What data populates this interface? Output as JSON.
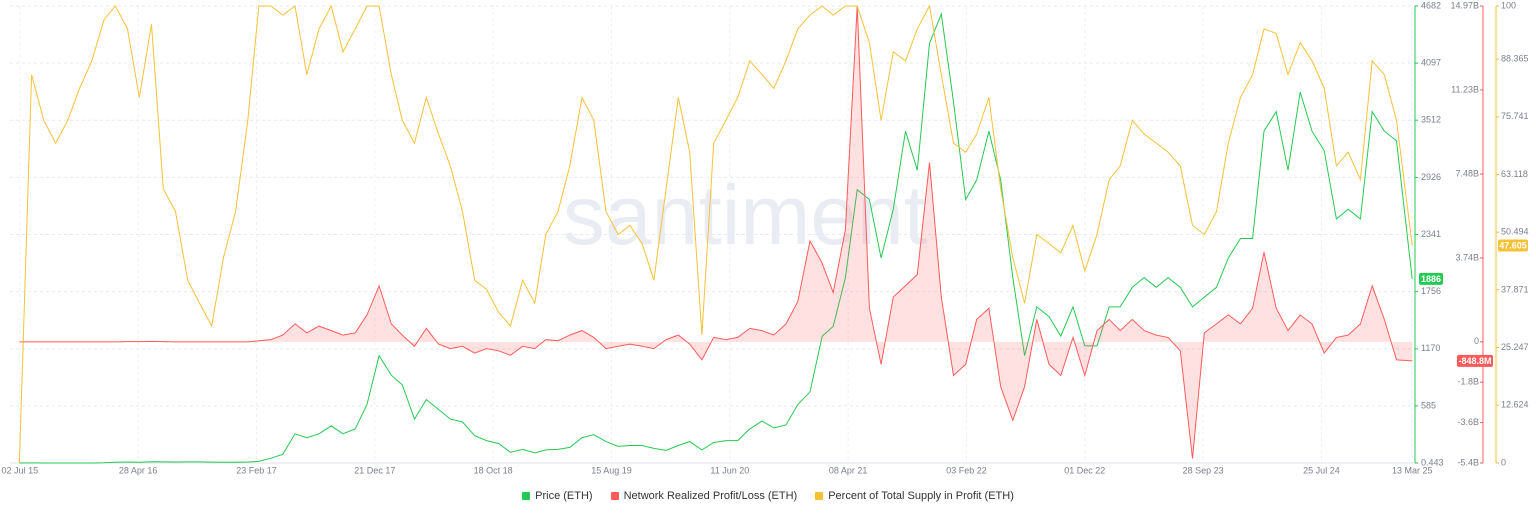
{
  "chart_data": {
    "type": "line",
    "watermark": "santiment",
    "x": [
      "2015-07-01",
      "2015-08-01",
      "2015-09-01",
      "2015-10-01",
      "2015-11-01",
      "2015-12-01",
      "2016-01-01",
      "2016-02-01",
      "2016-03-01",
      "2016-04-01",
      "2016-05-01",
      "2016-06-01",
      "2016-07-01",
      "2016-08-01",
      "2016-09-01",
      "2016-10-01",
      "2016-11-01",
      "2016-12-01",
      "2017-01-01",
      "2017-02-01",
      "2017-03-01",
      "2017-04-01",
      "2017-05-01",
      "2017-06-01",
      "2017-07-01",
      "2017-08-01",
      "2017-09-01",
      "2017-10-01",
      "2017-11-01",
      "2017-12-01",
      "2018-01-01",
      "2018-02-01",
      "2018-03-01",
      "2018-04-01",
      "2018-05-01",
      "2018-06-01",
      "2018-07-01",
      "2018-08-01",
      "2018-09-01",
      "2018-10-01",
      "2018-11-01",
      "2018-12-01",
      "2019-01-01",
      "2019-02-01",
      "2019-03-01",
      "2019-04-01",
      "2019-05-01",
      "2019-06-01",
      "2019-07-01",
      "2019-08-01",
      "2019-09-01",
      "2019-10-01",
      "2019-11-01",
      "2019-12-01",
      "2020-01-01",
      "2020-02-01",
      "2020-03-01",
      "2020-04-01",
      "2020-05-01",
      "2020-06-01",
      "2020-07-01",
      "2020-08-01",
      "2020-09-01",
      "2020-10-01",
      "2020-11-01",
      "2020-12-01",
      "2021-01-01",
      "2021-02-01",
      "2021-03-01",
      "2021-04-01",
      "2021-05-01",
      "2021-06-01",
      "2021-07-01",
      "2021-08-01",
      "2021-09-01",
      "2021-10-01",
      "2021-11-01",
      "2021-12-01",
      "2022-01-01",
      "2022-02-01",
      "2022-03-01",
      "2022-04-01",
      "2022-05-01",
      "2022-06-01",
      "2022-07-01",
      "2022-08-01",
      "2022-09-01",
      "2022-10-01",
      "2022-11-01",
      "2022-12-01",
      "2023-01-01",
      "2023-02-01",
      "2023-03-01",
      "2023-04-01",
      "2023-05-01",
      "2023-06-01",
      "2023-07-01",
      "2023-08-01",
      "2023-09-01",
      "2023-10-01",
      "2023-11-01",
      "2023-12-01",
      "2024-01-01",
      "2024-02-01",
      "2024-03-01",
      "2024-04-01",
      "2024-05-01",
      "2024-06-01",
      "2024-07-01",
      "2024-08-01",
      "2024-09-01",
      "2024-10-01",
      "2024-11-01",
      "2024-12-01",
      "2025-01-01",
      "2025-02-01",
      "2025-03-13"
    ],
    "xlim": [
      "2015-06-07",
      "2025-03-20"
    ],
    "xticks": [
      {
        "value": "2015-07-02",
        "label": "02 Jul 15"
      },
      {
        "value": "2016-04-28",
        "label": "28 Apr 16"
      },
      {
        "value": "2017-02-23",
        "label": "23 Feb 17"
      },
      {
        "value": "2017-12-21",
        "label": "21 Dec 17"
      },
      {
        "value": "2018-10-18",
        "label": "18 Oct 18"
      },
      {
        "value": "2019-08-15",
        "label": "15 Aug 19"
      },
      {
        "value": "2020-06-11",
        "label": "11 Jun 20"
      },
      {
        "value": "2021-04-08",
        "label": "08 Apr 21"
      },
      {
        "value": "2022-02-03",
        "label": "03 Feb 22"
      },
      {
        "value": "2022-12-01",
        "label": "01 Dec 22"
      },
      {
        "value": "2023-09-28",
        "label": "28 Sep 23"
      },
      {
        "value": "2024-07-25",
        "label": "25 Jul 24"
      },
      {
        "value": "2025-03-13",
        "label": "13 Mar 25"
      }
    ],
    "ylim": [
      0.443,
      4682
    ],
    "yticks": [
      0.443,
      585,
      1170,
      1756,
      2341,
      2926,
      3512,
      4097,
      4682
    ],
    "y2lim": [
      -5.4,
      14.97
    ],
    "y2ticks": [
      {
        "value": -5.4,
        "label": "-5.4B"
      },
      {
        "value": -3.6,
        "label": "-3.6B"
      },
      {
        "value": -1.8,
        "label": "-1.8B"
      },
      0,
      {
        "value": 3.74,
        "label": "3.74B"
      },
      {
        "value": 7.48,
        "label": "7.48B"
      },
      {
        "value": 11.23,
        "label": "11.23B"
      },
      {
        "value": 14.97,
        "label": "14.97B"
      }
    ],
    "y3lim": [
      0,
      100
    ],
    "y3ticks": [
      0,
      12.624,
      25.247,
      37.871,
      50.494,
      63.118,
      75.741,
      88.365,
      100
    ],
    "grid": true,
    "legend": "bottom",
    "series": [
      {
        "name": "Price (ETH)",
        "color": "#26c953",
        "axis": "y",
        "values": [
          0.443,
          1.2,
          0.9,
          0.6,
          0.9,
          0.9,
          0.95,
          2.3,
          8,
          11,
          9,
          13,
          12,
          11,
          12,
          12,
          10,
          8,
          8,
          11,
          17,
          50,
          90,
          300,
          260,
          300,
          380,
          300,
          350,
          600,
          1100,
          900,
          800,
          450,
          650,
          550,
          450,
          420,
          280,
          230,
          200,
          110,
          140,
          105,
          135,
          140,
          160,
          260,
          290,
          220,
          170,
          180,
          180,
          150,
          130,
          180,
          220,
          135,
          210,
          230,
          230,
          350,
          430,
          360,
          390,
          600,
          730,
          1300,
          1400,
          1900,
          2800,
          2700,
          2100,
          2600,
          3400,
          3000,
          4300,
          4600,
          3700,
          2700,
          2900,
          3400,
          2900,
          1900,
          1100,
          1600,
          1500,
          1300,
          1600,
          1200,
          1200,
          1600,
          1600,
          1800,
          1900,
          1800,
          1900,
          1800,
          1600,
          1700,
          1800,
          2100,
          2300,
          2300,
          3400,
          3600,
          3000,
          3800,
          3400,
          3200,
          2500,
          2600,
          2500,
          3600,
          3400,
          3300,
          1886
        ]
      },
      {
        "name": "Network Realized Profit/Loss (ETH)",
        "color": "#ff5b5b",
        "axis": "y2",
        "values": [
          0,
          0,
          0,
          0,
          0,
          0,
          0,
          0,
          0,
          0.01,
          0.01,
          0.02,
          0.01,
          0,
          0,
          0,
          0,
          0,
          0,
          0,
          0.05,
          0.1,
          0.3,
          0.8,
          0.4,
          0.7,
          0.5,
          0.3,
          0.4,
          1.2,
          2.5,
          0.8,
          0.3,
          -0.2,
          0.6,
          -0.1,
          -0.3,
          -0.2,
          -0.5,
          -0.3,
          -0.4,
          -0.6,
          -0.2,
          -0.3,
          0.1,
          0.05,
          0.3,
          0.5,
          0.2,
          -0.3,
          -0.2,
          -0.1,
          -0.2,
          -0.3,
          0.1,
          0.3,
          -0.1,
          -0.8,
          0.2,
          0.1,
          0.2,
          0.6,
          0.5,
          0.3,
          0.8,
          1.8,
          4.5,
          3.5,
          2.2,
          5.0,
          14.97,
          1.5,
          -1.0,
          2.0,
          2.5,
          3.0,
          8.0,
          2.0,
          -1.5,
          -1.0,
          1.0,
          1.5,
          -2.0,
          -3.5,
          -2.0,
          1.0,
          -1.0,
          -1.5,
          0.2,
          -1.5,
          0.5,
          1.0,
          0.5,
          1.0,
          0.5,
          0.3,
          0.2,
          -0.4,
          -5.2,
          0.4,
          0.8,
          1.2,
          0.8,
          1.5,
          4.0,
          1.5,
          0.5,
          1.2,
          0.8,
          -0.5,
          0.2,
          0.3,
          0.8,
          2.5,
          1.0,
          -0.8,
          -0.8488
        ],
        "value_labels": [
          null,
          null,
          null,
          null,
          null,
          null,
          null,
          null,
          null,
          null,
          null,
          null,
          null,
          null,
          null,
          null,
          null,
          null,
          null,
          null,
          null,
          null,
          null,
          null,
          null,
          null,
          null,
          null,
          null,
          null,
          null,
          null,
          null,
          null,
          null,
          null,
          null,
          null,
          null,
          null,
          null,
          null,
          null,
          null,
          null,
          null,
          null,
          null,
          null,
          null,
          null,
          null,
          null,
          null,
          null,
          null,
          null,
          null,
          null,
          null,
          null,
          null,
          null,
          null,
          null,
          null,
          null,
          null,
          null,
          null,
          null,
          null,
          null,
          null,
          null,
          null,
          null,
          null,
          null,
          null,
          null,
          null,
          null,
          null,
          null,
          null,
          null,
          null,
          null,
          null,
          null,
          null,
          null,
          null,
          null,
          null,
          null,
          null,
          null,
          null,
          null,
          null,
          null,
          null,
          null,
          null,
          null,
          null,
          null,
          null,
          null,
          null,
          null,
          null,
          null,
          null,
          "-848.8M"
        ]
      },
      {
        "name": "Percent of Total Supply in Profit (ETH)",
        "color": "#f7c137",
        "axis": "y3",
        "values": [
          0,
          85,
          75,
          70,
          75,
          82,
          88,
          97,
          100,
          95,
          80,
          96,
          60,
          55,
          40,
          35,
          30,
          45,
          55,
          75,
          100,
          100,
          98,
          100,
          85,
          95,
          100,
          90,
          95,
          100,
          100,
          85,
          75,
          70,
          80,
          72,
          65,
          55,
          40,
          38,
          33,
          30,
          40,
          35,
          50,
          55,
          65,
          80,
          75,
          55,
          50,
          52,
          48,
          40,
          60,
          80,
          68,
          28,
          70,
          75,
          80,
          88,
          85,
          82,
          88,
          95,
          98,
          100,
          98,
          100,
          100,
          92,
          75,
          90,
          88,
          95,
          100,
          85,
          70,
          68,
          72,
          80,
          60,
          45,
          35,
          50,
          48,
          46,
          52,
          42,
          50,
          62,
          65,
          75,
          72,
          70,
          68,
          65,
          52,
          50,
          55,
          70,
          80,
          85,
          95,
          94,
          85,
          92,
          88,
          82,
          65,
          68,
          62,
          88,
          85,
          75,
          47.605
        ]
      }
    ]
  }
}
